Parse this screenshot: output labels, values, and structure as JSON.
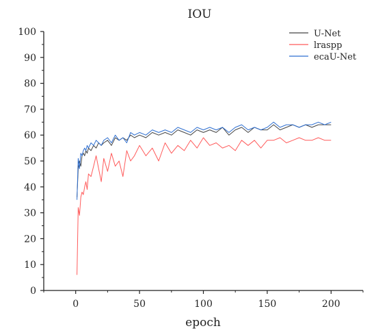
{
  "chart_data": {
    "type": "line",
    "title": "IOU",
    "xlabel": "epoch",
    "ylabel": "",
    "xlim": [
      -25,
      225
    ],
    "ylim": [
      0,
      100
    ],
    "xticks": [
      0,
      50,
      100,
      150,
      200
    ],
    "yticks": [
      0,
      10,
      20,
      30,
      40,
      50,
      60,
      70,
      80,
      90,
      100
    ],
    "grid": false,
    "legend_position": "top-right",
    "x": [
      1,
      2,
      3,
      4,
      5,
      6,
      7,
      8,
      9,
      10,
      12,
      14,
      16,
      18,
      20,
      22,
      25,
      28,
      31,
      34,
      37,
      40,
      43,
      46,
      50,
      55,
      60,
      65,
      70,
      75,
      80,
      85,
      90,
      95,
      100,
      105,
      110,
      115,
      120,
      125,
      130,
      135,
      140,
      145,
      150,
      155,
      160,
      165,
      170,
      175,
      180,
      185,
      190,
      195,
      200
    ],
    "series": [
      {
        "name": "U-Net",
        "color": "#444444",
        "values": [
          36,
          47,
          50,
          48,
          52,
          53,
          52,
          54,
          53,
          55,
          54,
          56,
          55,
          57,
          56,
          57,
          58,
          56,
          59,
          58,
          59,
          58,
          60,
          59,
          60,
          59,
          61,
          60,
          61,
          60,
          62,
          61,
          60,
          62,
          61,
          62,
          61,
          63,
          60,
          62,
          63,
          61,
          63,
          62,
          62,
          64,
          62,
          63,
          64,
          63,
          64,
          63,
          64,
          64,
          64
        ]
      },
      {
        "name": "lraspp",
        "color": "#ff5a5a",
        "values": [
          6,
          32,
          29,
          36,
          38,
          37,
          40,
          42,
          39,
          45,
          44,
          48,
          52,
          47,
          42,
          51,
          46,
          53,
          48,
          50,
          44,
          54,
          50,
          52,
          56,
          52,
          55,
          50,
          57,
          53,
          56,
          54,
          58,
          55,
          59,
          56,
          57,
          55,
          56,
          54,
          58,
          56,
          58,
          55,
          58,
          58,
          59,
          57,
          58,
          59,
          58,
          58,
          59,
          58,
          58
        ]
      },
      {
        "name": "ecaU-Net",
        "color": "#2f6fd0",
        "values": [
          35,
          51,
          47,
          53,
          52,
          54,
          55,
          54,
          56,
          55,
          57,
          56,
          58,
          57,
          56,
          58,
          59,
          57,
          60,
          58,
          59,
          57,
          61,
          60,
          61,
          60,
          62,
          61,
          62,
          61,
          63,
          62,
          61,
          63,
          62,
          63,
          62,
          63,
          61,
          63,
          64,
          62,
          63,
          62,
          63,
          65,
          63,
          64,
          64,
          63,
          64,
          64,
          65,
          64,
          65
        ]
      }
    ]
  }
}
